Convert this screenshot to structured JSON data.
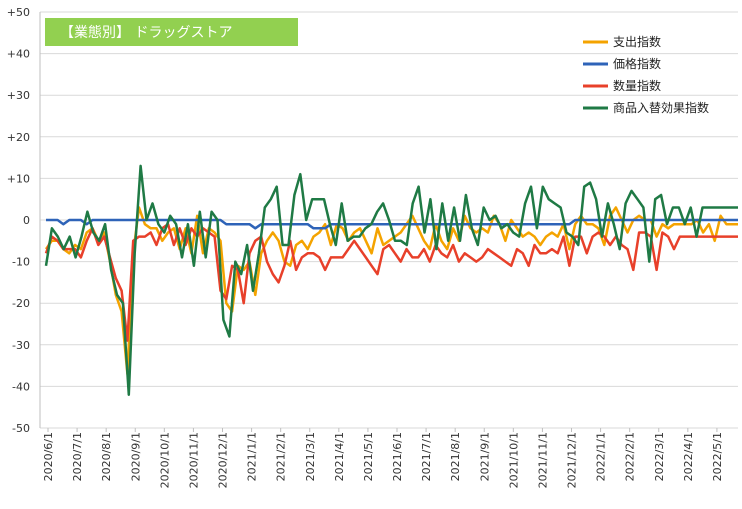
{
  "chart_data": {
    "type": "line",
    "title": "【業態別】 ドラッグストア",
    "title_bg_color": "#92D050",
    "ylim": [
      -50,
      50
    ],
    "yticks": [
      "+50",
      "+40",
      "+30",
      "+20",
      "+10",
      "0",
      "-10",
      "-20",
      "-30",
      "-40",
      "-50"
    ],
    "xticks": [
      "2020/6/1",
      "2020/7/1",
      "2020/8/1",
      "2020/9/1",
      "2020/10/1",
      "2020/11/1",
      "2020/12/1",
      "2021/1/1",
      "2021/2/1",
      "2021/3/1",
      "2021/4/1",
      "2021/5/1",
      "2021/6/1",
      "2021/7/1",
      "2021/8/1",
      "2021/9/1",
      "2021/10/1",
      "2021/11/1",
      "2021/12/1",
      "2022/1/1",
      "2022/2/1",
      "2022/3/1",
      "2022/4/1",
      "2022/5/1"
    ],
    "grid": true,
    "legend_position": "top-right",
    "series": [
      {
        "name": "支出指数",
        "color": "#F4A300",
        "values": [
          -7,
          -5,
          -5,
          -7,
          -8,
          -6,
          -7,
          -3,
          -2,
          -5,
          -3,
          -10,
          -18,
          -22,
          -37,
          -8,
          3,
          -1,
          -2,
          -2,
          -5,
          -3,
          -2,
          -7,
          -2,
          -8,
          1,
          -8,
          -2,
          -3,
          -5,
          -20,
          -22,
          -11,
          -12,
          -10,
          -18,
          -8,
          -5,
          -3,
          -5,
          -10,
          -11,
          -6,
          -5,
          -7,
          -4,
          -3,
          -1,
          -6,
          -1,
          -2,
          -5,
          -3,
          -2,
          -5,
          -8,
          -2,
          -6,
          -5,
          -4,
          -3,
          -1,
          1,
          -2,
          -5,
          -7,
          -1,
          -5,
          -7,
          -2,
          -5,
          1,
          -2,
          -3,
          -2,
          -3,
          1,
          -1,
          -5,
          0,
          -2,
          -4,
          -3,
          -4,
          -6,
          -4,
          -3,
          -4,
          -1,
          -7,
          -1,
          1,
          -1,
          -1,
          -2,
          -6,
          1,
          3,
          0,
          -3,
          0,
          1,
          0,
          0,
          -4,
          -1,
          -2,
          -1,
          -1,
          -1,
          -1,
          0,
          -3,
          -1,
          -5,
          1,
          -1,
          -1,
          -1
        ]
      },
      {
        "name": "価格指数",
        "color": "#2E63B8",
        "values": [
          0,
          0,
          0,
          -1,
          0,
          0,
          0,
          -1,
          0,
          0,
          0,
          0,
          0,
          0,
          0,
          0,
          0,
          0,
          0,
          0,
          0,
          0,
          0,
          0,
          0,
          0,
          0,
          0,
          0,
          0,
          0,
          -1,
          -1,
          -1,
          -1,
          -1,
          -2,
          -1,
          -1,
          -1,
          -1,
          -1,
          -1,
          -1,
          -1,
          -1,
          -2,
          -2,
          -2,
          -1,
          -1,
          -1,
          -1,
          -1,
          -1,
          -1,
          -1,
          -1,
          -1,
          -1,
          -1,
          -1,
          -1,
          -1,
          -1,
          -1,
          -1,
          -1,
          -1,
          -1,
          -1,
          -1,
          -1,
          -1,
          -1,
          -1,
          -1,
          -1,
          -1,
          -1,
          -1,
          -1,
          -1,
          -1,
          -1,
          -1,
          -1,
          -1,
          -1,
          -1,
          -1,
          0,
          0,
          0,
          0,
          0,
          0,
          0,
          0,
          0,
          0,
          0,
          0,
          0,
          0,
          0,
          0,
          0,
          0,
          0,
          0,
          0,
          0,
          0,
          0,
          0,
          0,
          0,
          0,
          0
        ]
      },
      {
        "name": "数量指数",
        "color": "#E8402A",
        "values": [
          -8,
          -4,
          -5,
          -7,
          -7,
          -7,
          -9,
          -5,
          -2,
          -6,
          -4,
          -9,
          -14,
          -17,
          -29,
          -5,
          -4,
          -4,
          -3,
          -6,
          -2,
          -1,
          -6,
          -2,
          -6,
          -2,
          -4,
          -2,
          -3,
          -4,
          -17,
          -19,
          -11,
          -12,
          -20,
          -8,
          -5,
          -4,
          -10,
          -13,
          -15,
          -11,
          -5,
          -12,
          -9,
          -8,
          -8,
          -9,
          -12,
          -9,
          -9,
          -9,
          -7,
          -5,
          -7,
          -9,
          -11,
          -13,
          -7,
          -6,
          -8,
          -10,
          -7,
          -9,
          -9,
          -7,
          -10,
          -6,
          -8,
          -9,
          -6,
          -10,
          -8,
          -9,
          -10,
          -9,
          -7,
          -8,
          -9,
          -10,
          -11,
          -7,
          -8,
          -11,
          -6,
          -8,
          -8,
          -7,
          -8,
          -4,
          -11,
          -4,
          -4,
          -8,
          -4,
          -3,
          -4,
          -6,
          -4,
          -6,
          -7,
          -12,
          -3,
          -3,
          -4,
          -12,
          -3,
          -4,
          -7,
          -4,
          -4,
          -4,
          -4,
          -4,
          -4,
          -4,
          -4,
          -4,
          -4,
          -4
        ]
      },
      {
        "name": "商品入替効果指数",
        "color": "#1F7A45",
        "values": [
          -11,
          -2,
          -4,
          -7,
          -4,
          -9,
          -4,
          2,
          -3,
          -5,
          -1,
          -12,
          -18,
          -20,
          -42,
          -8,
          13,
          0,
          4,
          -1,
          -3,
          1,
          -1,
          -9,
          -1,
          -11,
          2,
          -9,
          2,
          0,
          -24,
          -28,
          -10,
          -13,
          -6,
          -17,
          -8,
          3,
          5,
          8,
          -6,
          -6,
          6,
          11,
          0,
          5,
          5,
          5,
          -1,
          -6,
          4,
          -5,
          -4,
          -4,
          -2,
          -1,
          2,
          4,
          0,
          -5,
          -5,
          -6,
          4,
          8,
          -3,
          5,
          -7,
          4,
          -5,
          3,
          -5,
          6,
          -2,
          -6,
          3,
          0,
          1,
          -2,
          -1,
          -3,
          -4,
          4,
          8,
          -2,
          8,
          5,
          4,
          3,
          -3,
          -4,
          -6,
          8,
          9,
          5,
          -4,
          4,
          -1,
          -7,
          4,
          7,
          5,
          3,
          -10,
          5,
          6,
          -1,
          3,
          3,
          -1,
          3,
          -4,
          3,
          3,
          3,
          3,
          3,
          3,
          3
        ]
      }
    ]
  }
}
